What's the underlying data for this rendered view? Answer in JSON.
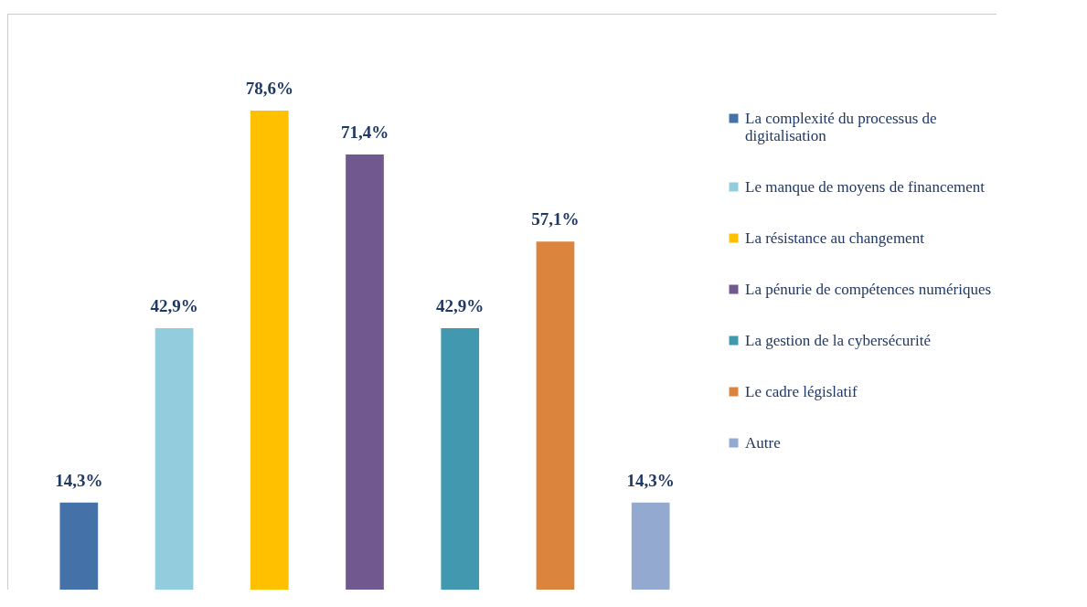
{
  "chart_data": {
    "type": "bar",
    "categories": [
      null,
      null,
      null,
      null,
      null,
      null,
      null
    ],
    "stacked": true,
    "legend": "right",
    "series": [
      {
        "name": "La complexité du processus de digitalisation",
        "color": "#4472a8",
        "values": [
          14.3,
          null,
          null,
          null,
          null,
          null,
          null
        ],
        "value_labels": [
          "14,3%",
          null,
          null,
          null,
          null,
          null,
          null
        ]
      },
      {
        "name": "Le manque de moyens de financement",
        "color": "#93cddd",
        "values": [
          null,
          42.9,
          null,
          null,
          null,
          null,
          null
        ],
        "value_labels": [
          null,
          "42,9%",
          null,
          null,
          null,
          null,
          null
        ]
      },
      {
        "name": "La résistance au changement",
        "color": "#ffc000",
        "values": [
          null,
          null,
          78.6,
          null,
          null,
          null,
          null
        ],
        "value_labels": [
          null,
          null,
          "78,6%",
          null,
          null,
          null,
          null
        ]
      },
      {
        "name": "La pénurie de compétences numériques",
        "color": "#71588f",
        "values": [
          null,
          null,
          null,
          71.4,
          null,
          null,
          null
        ],
        "value_labels": [
          null,
          null,
          null,
          "71,4%",
          null,
          null,
          null
        ]
      },
      {
        "name": "La gestion de la cybersécurité",
        "color": "#4198af",
        "values": [
          null,
          null,
          null,
          null,
          42.9,
          null,
          null
        ],
        "value_labels": [
          null,
          null,
          null,
          null,
          "42,9%",
          null,
          null
        ]
      },
      {
        "name": "Le cadre législatif",
        "color": "#db843d",
        "values": [
          null,
          null,
          null,
          null,
          null,
          57.1,
          null
        ],
        "value_labels": [
          null,
          null,
          null,
          null,
          null,
          "57,1%",
          null
        ]
      },
      {
        "name": "Autre",
        "color": "#93a9cf",
        "values": [
          null,
          null,
          null,
          null,
          null,
          null,
          14.3
        ],
        "value_labels": [
          null,
          null,
          null,
          null,
          null,
          null,
          "14,3%"
        ]
      }
    ]
  }
}
